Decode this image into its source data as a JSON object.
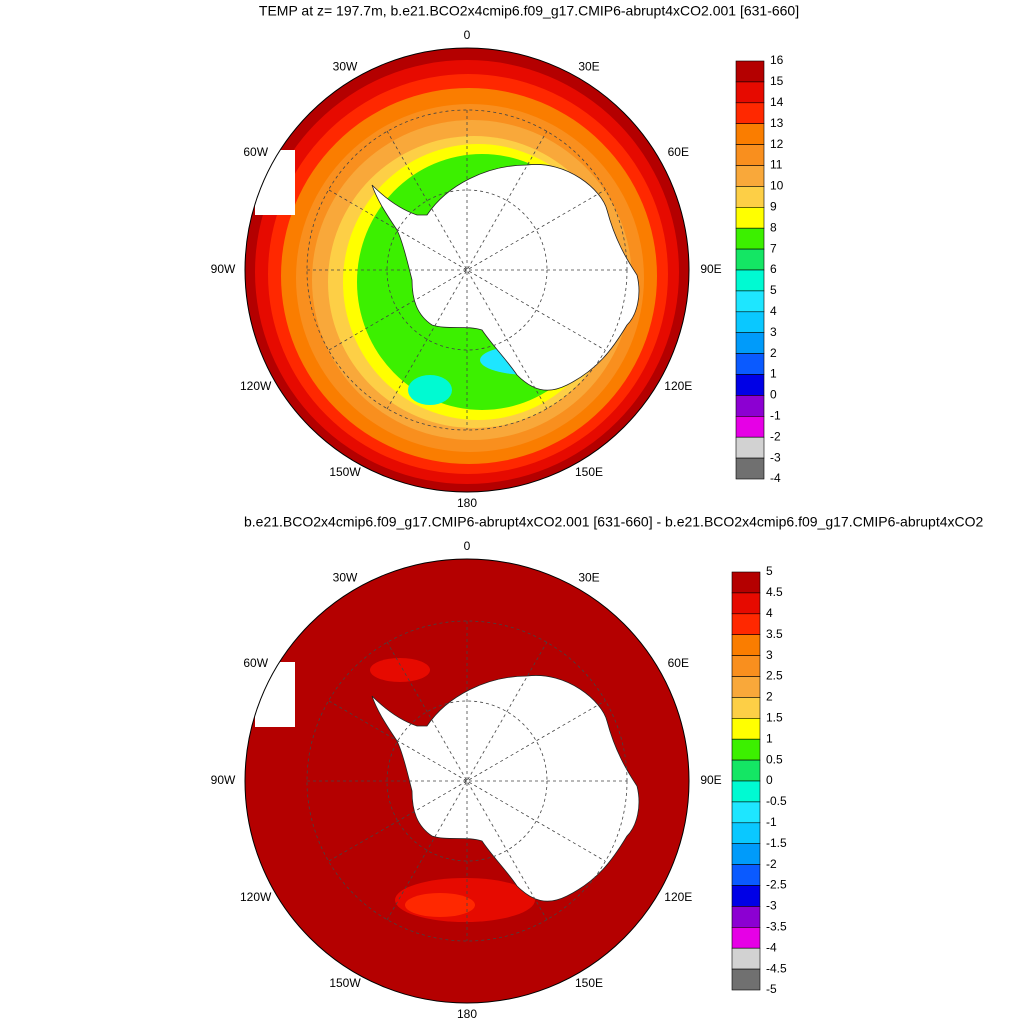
{
  "panels": [
    {
      "title": "TEMP at z= 197.7m, b.e21.BCO2x4cmip6.f09_g17.CMIP6-abrupt4xCO2.001 [631-660]",
      "lon_labels": [
        "0",
        "30E",
        "60E",
        "90E",
        "120E",
        "150E",
        "180",
        "150W",
        "120W",
        "90W",
        "60W",
        "30W"
      ],
      "colorbar": {
        "labels": [
          16,
          15,
          14,
          13,
          12,
          11,
          10,
          9,
          8,
          7,
          6,
          5,
          4,
          3,
          2,
          1,
          0,
          -1,
          -2,
          -3,
          -4
        ],
        "colors": [
          "#b40000",
          "#e60a00",
          "#ff2800",
          "#fa7d00",
          "#f98f1e",
          "#f9a83a",
          "#fdcf46",
          "#ffff00",
          "#3cf000",
          "#14e664",
          "#00fad2",
          "#1ee6ff",
          "#0ac8ff",
          "#009bfa",
          "#0a5aff",
          "#0000e6",
          "#8c00d2",
          "#e600e6",
          "#d2d2d2",
          "#707070"
        ]
      }
    },
    {
      "title": "b.e21.BCO2x4cmip6.f09_g17.CMIP6-abrupt4xCO2.001 [631-660] - b.e21.BCO2x4cmip6.f09_g17.CMIP6-abrupt4xCO2",
      "lon_labels": [
        "0",
        "30E",
        "60E",
        "90E",
        "120E",
        "150E",
        "180",
        "150W",
        "120W",
        "90W",
        "60W",
        "30W"
      ],
      "colorbar": {
        "labels": [
          5,
          4.5,
          4,
          3.5,
          3,
          2.5,
          2,
          1.5,
          1,
          0.5,
          0,
          -0.5,
          -1,
          -1.5,
          -2,
          -2.5,
          -3,
          -3.5,
          -4,
          -4.5,
          -5
        ],
        "colors": [
          "#b40000",
          "#e60a00",
          "#ff2800",
          "#fa7d00",
          "#f98f1e",
          "#f9a83a",
          "#fdcf46",
          "#ffff00",
          "#3cf000",
          "#14e664",
          "#00fad2",
          "#1ee6ff",
          "#0ac8ff",
          "#009bfa",
          "#0a5aff",
          "#0000e6",
          "#8c00d2",
          "#e600e6",
          "#d2d2d2",
          "#707070"
        ]
      }
    }
  ]
}
